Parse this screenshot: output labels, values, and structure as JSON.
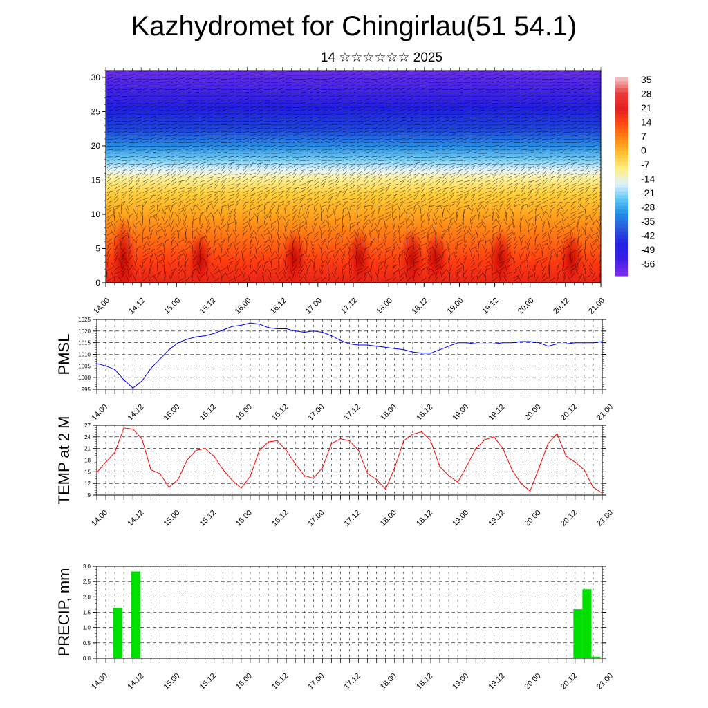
{
  "title": "Kazhydromet for Chingirlau(51 54.1)",
  "subtitle": "14 ☆☆☆☆☆☆ 2025",
  "time_labels": [
    "14.00",
    "14.12",
    "15.00",
    "15.12",
    "16.00",
    "16.12",
    "17.00",
    "17.12",
    "18.00",
    "18.12",
    "19.00",
    "19.12",
    "20.00",
    "20.12",
    "21.00"
  ],
  "colorbar": {
    "labels": [
      "35",
      "28",
      "21",
      "14",
      "7",
      "0",
      "-7",
      "-14",
      "-21",
      "-28",
      "-35",
      "-42",
      "-49",
      "-56"
    ],
    "colors": [
      "#f3b8b8",
      "#e83a3a",
      "#e42020",
      "#ff4c10",
      "#ff8a14",
      "#ffc234",
      "#ffef86",
      "#dff1fa",
      "#5fc8f5",
      "#1e8ee6",
      "#2a55dd",
      "#2222e4",
      "#3a1ee8",
      "#7a2cee"
    ]
  },
  "colors": {
    "pmsl_line": "#0000ff",
    "temp_line": "#ff0000",
    "precip_bar": "#00e000"
  },
  "chart_data": [
    {
      "type": "heatmap",
      "title": "",
      "xlabel": "",
      "ylabel": "",
      "x_range": [
        "14.00",
        "21.00"
      ],
      "ylim": [
        0,
        31
      ],
      "yticks": [
        "0",
        "5",
        "10",
        "15",
        "20",
        "25",
        "30"
      ],
      "colorbar_range": [
        -56,
        35
      ],
      "description_levels": {
        "0-5": "hot red surface layer with warm cores near 14.06, 15.18, 16.18, 18.06, 18.18, 19.12",
        "5-14": "orange to yellow",
        "15-17": "yellow to pale",
        "18-21": "light blue to blue",
        "22-31": "deep blue to violet"
      },
      "overlay": "wind vectors / streamlines"
    },
    {
      "type": "line",
      "title": "",
      "ylabel": "PMSL",
      "ylim": [
        995,
        1025
      ],
      "yticks": [
        "995",
        "1000",
        "1005",
        "1010",
        "1015",
        "1020",
        "1025"
      ],
      "x": [
        0,
        3,
        6,
        9,
        12,
        15,
        18,
        21,
        24,
        27,
        30,
        33,
        36,
        39,
        42,
        45,
        48,
        51,
        54,
        57,
        60,
        63,
        66,
        69,
        72,
        75,
        78,
        81,
        84,
        87,
        90,
        93,
        96,
        99,
        102,
        105,
        108,
        111,
        114,
        117,
        120,
        123,
        126,
        129,
        132,
        135,
        138,
        141,
        144,
        147,
        150,
        153,
        156,
        159,
        162,
        165,
        168
      ],
      "series": [
        {
          "values": [
            1006,
            1005,
            1003.5,
            999,
            995.5,
            998.5,
            1004,
            1008,
            1012,
            1015,
            1016.5,
            1017.5,
            1018,
            1019,
            1020.5,
            1022,
            1022.5,
            1023.5,
            1023,
            1021.5,
            1021,
            1021,
            1020,
            1019.5,
            1020,
            1019.5,
            1018,
            1016,
            1014.5,
            1014,
            1014,
            1013.5,
            1013,
            1012.5,
            1012,
            1011,
            1010.5,
            1010.5,
            1012,
            1013.5,
            1015,
            1015,
            1014.5,
            1014.5,
            1014.5,
            1015,
            1015,
            1015.5,
            1015.5,
            1015,
            1013.5,
            1014.5,
            1014.5,
            1015,
            1015,
            1015,
            1015.5
          ]
        }
      ]
    },
    {
      "type": "line",
      "title": "",
      "ylabel": "TEMP at 2 M",
      "ylim": [
        9,
        27
      ],
      "yticks": [
        "9",
        "12",
        "15",
        "18",
        "21",
        "24",
        "27"
      ],
      "x": [
        0,
        3,
        6,
        9,
        12,
        15,
        18,
        21,
        24,
        27,
        30,
        33,
        36,
        39,
        42,
        45,
        48,
        51,
        54,
        57,
        60,
        63,
        66,
        69,
        72,
        75,
        78,
        81,
        84,
        87,
        90,
        93,
        96,
        99,
        102,
        105,
        108,
        111,
        114,
        117,
        120,
        123,
        126,
        129,
        132,
        135,
        138,
        141,
        144,
        147,
        150,
        153,
        156,
        159,
        162,
        165,
        168
      ],
      "series": [
        {
          "values": [
            14.8,
            17.5,
            20,
            26.3,
            26,
            23.5,
            15.5,
            14.5,
            11,
            13,
            18,
            20.5,
            21,
            19,
            15.5,
            12.8,
            10.8,
            13.8,
            20.5,
            22.7,
            23,
            20.5,
            17,
            14,
            13.3,
            16,
            22.3,
            23.5,
            23,
            20.5,
            14.5,
            13,
            10.5,
            16,
            23,
            24.7,
            25.3,
            23,
            16.3,
            14,
            12.3,
            16.5,
            21,
            23.3,
            24,
            21,
            15.5,
            12,
            10,
            16,
            22.3,
            24.8,
            19,
            17.5,
            15.5,
            11,
            9.5
          ]
        }
      ]
    },
    {
      "type": "bar",
      "title": "",
      "ylabel": "PRECIP, mm",
      "ylim": [
        0,
        3.0
      ],
      "yticks": [
        "0.0",
        "0.5",
        "1.0",
        "1.5",
        "2.0",
        "2.5",
        "3.0"
      ],
      "x": [
        6,
        12,
        159,
        162,
        165
      ],
      "series": [
        {
          "values": [
            1.65,
            2.83,
            1.6,
            2.25,
            0.05
          ]
        }
      ]
    }
  ]
}
